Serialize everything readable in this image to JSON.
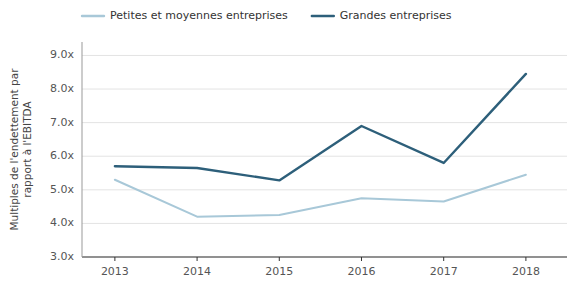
{
  "chart_data": {
    "type": "line",
    "ylabel": "Multiples de l'endettement par\nrapport à l'EBITDA",
    "x": [
      2013,
      2014,
      2015,
      2016,
      2017,
      2018
    ],
    "series": [
      {
        "name": "Petites et moyennes entreprises",
        "color": "#a8c8d8",
        "values": [
          5.3,
          4.2,
          4.25,
          4.75,
          4.65,
          5.45
        ]
      },
      {
        "name": "Grandes entreprises",
        "color": "#2d5f7a",
        "values": [
          5.7,
          5.65,
          5.28,
          6.9,
          5.8,
          8.45
        ]
      }
    ],
    "xlim": [
      2012.6,
      2018.5
    ],
    "xticks": [
      2013,
      2014,
      2015,
      2016,
      2017,
      2018
    ],
    "ylim": [
      3.0,
      9.4
    ],
    "yticks": [
      {
        "value": 3.0,
        "label": "3.0x"
      },
      {
        "value": 4.0,
        "label": "4.0x"
      },
      {
        "value": 5.0,
        "label": "5.0x"
      },
      {
        "value": 6.0,
        "label": "6.0x"
      },
      {
        "value": 7.0,
        "label": "7.0x"
      },
      {
        "value": 8.0,
        "label": "8.0x"
      },
      {
        "value": 9.0,
        "label": "9.0x"
      }
    ],
    "grid": true,
    "legend": "top-left"
  }
}
